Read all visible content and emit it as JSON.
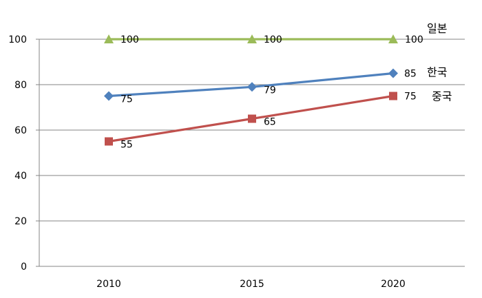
{
  "chart_data": {
    "type": "line",
    "x": [
      "2010",
      "2015",
      "2020"
    ],
    "ylim": [
      0,
      100
    ],
    "yticks": [
      0,
      20,
      40,
      60,
      80,
      100
    ],
    "grid": true,
    "legend": "inline labels at right end of each series",
    "series": [
      {
        "name": "일본",
        "values": [
          100,
          100,
          100
        ],
        "color": "#9BBB59",
        "marker": "triangle"
      },
      {
        "name": "한국",
        "values": [
          75,
          79,
          85
        ],
        "color": "#4F81BD",
        "marker": "diamond"
      },
      {
        "name": "중국",
        "values": [
          55,
          65,
          75
        ],
        "color": "#C0504D",
        "marker": "square"
      }
    ]
  }
}
